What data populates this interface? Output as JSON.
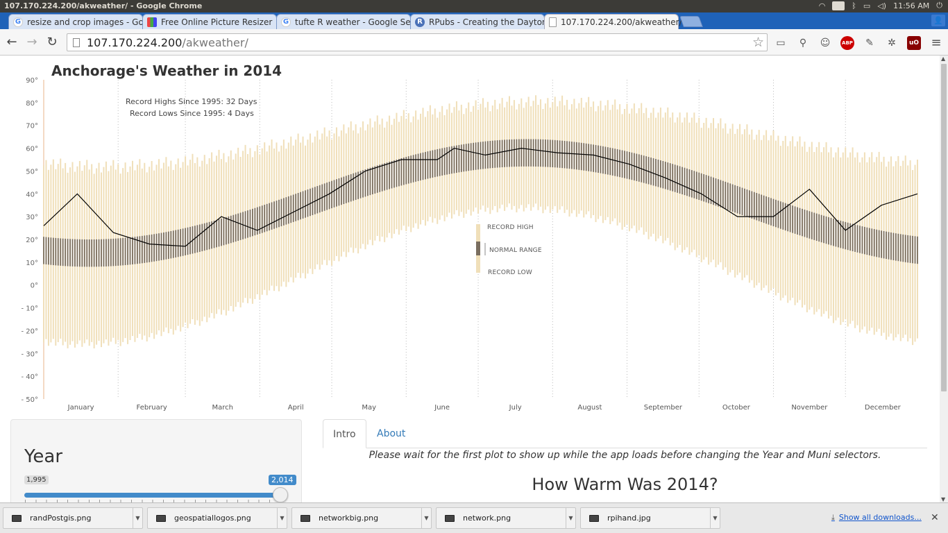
{
  "os": {
    "window_title": "107.170.224.200/akweather/ - Google Chrome",
    "lang": "En",
    "clock": "11:56 AM"
  },
  "tabs": [
    {
      "label": "resize and crop images - Goo",
      "icon": "google-icon"
    },
    {
      "label": "Free Online Picture Resizer",
      "icon": "grid-icon"
    },
    {
      "label": "tufte R weather - Google Sea",
      "icon": "google-icon"
    },
    {
      "label": "RPubs - Creating the Dayton",
      "icon": "rpubs-icon"
    },
    {
      "label": "107.170.224.200/akweather/",
      "icon": "page-icon",
      "active": true
    }
  ],
  "address": {
    "host": "107.170.224.200",
    "path": "/akweather/"
  },
  "chart": {
    "title": "Anchorage's Weather in 2014",
    "record_highs": "Record Highs Since 1995: 32 Days",
    "record_lows": "Record Lows Since 1995: 4 Days",
    "legend": {
      "high": "RECORD HIGH",
      "normal": "NORMAL RANGE",
      "low": "RECORD LOW"
    }
  },
  "chart_data": {
    "type": "line",
    "title": "Anchorage's Weather in 2014",
    "ylim": [
      -50,
      90
    ],
    "y_ticks": [
      "90°",
      "80°",
      "70°",
      "60°",
      "50°",
      "40°",
      "30°",
      "20°",
      "10°",
      "0°",
      "- 10°",
      "- 20°",
      "- 30°",
      "- 40°",
      "- 50°"
    ],
    "months": [
      "January",
      "February",
      "March",
      "April",
      "May",
      "June",
      "July",
      "August",
      "September",
      "October",
      "November",
      "December"
    ],
    "series": [
      {
        "name": "",
        "x": [
          1,
          15,
          30,
          45,
          60,
          75,
          90,
          105,
          120,
          135,
          150,
          165,
          172,
          185,
          200,
          215,
          230,
          245,
          260,
          275,
          290,
          305,
          320,
          335,
          350,
          365
        ],
        "values": [
          26,
          40,
          23,
          18,
          17,
          30,
          24,
          32,
          40,
          50,
          55,
          55,
          60,
          57,
          60,
          58,
          57,
          53,
          47,
          40,
          30,
          30,
          42,
          24,
          35,
          40
        ]
      }
    ],
    "colors": {
      "record_band": "#f0dfb9",
      "normal_band": "#7a6e5f",
      "line": "#000000",
      "record_high_dot": "#e02020",
      "record_low_dot": "#1030d0",
      "axis": "#e8b58a"
    }
  },
  "sidebar": {
    "year_label": "Year",
    "slider_min": "1,995",
    "slider_max": "2,014",
    "slider_value_fraction": 1.0
  },
  "main_tabs": [
    {
      "label": "Intro",
      "active": true
    },
    {
      "label": "About",
      "active": false
    }
  ],
  "intro": {
    "note": "Please wait for the first plot to show up while the app loads before changing the Year and Muni selectors.",
    "heading": "How Warm Was 2014?"
  },
  "downloads": [
    {
      "name": "randPostgis.png"
    },
    {
      "name": "geospatiallogos.png"
    },
    {
      "name": "networkbig.png"
    },
    {
      "name": "network.png"
    },
    {
      "name": "rpihand.jpg"
    }
  ],
  "show_all": "Show all downloads..."
}
